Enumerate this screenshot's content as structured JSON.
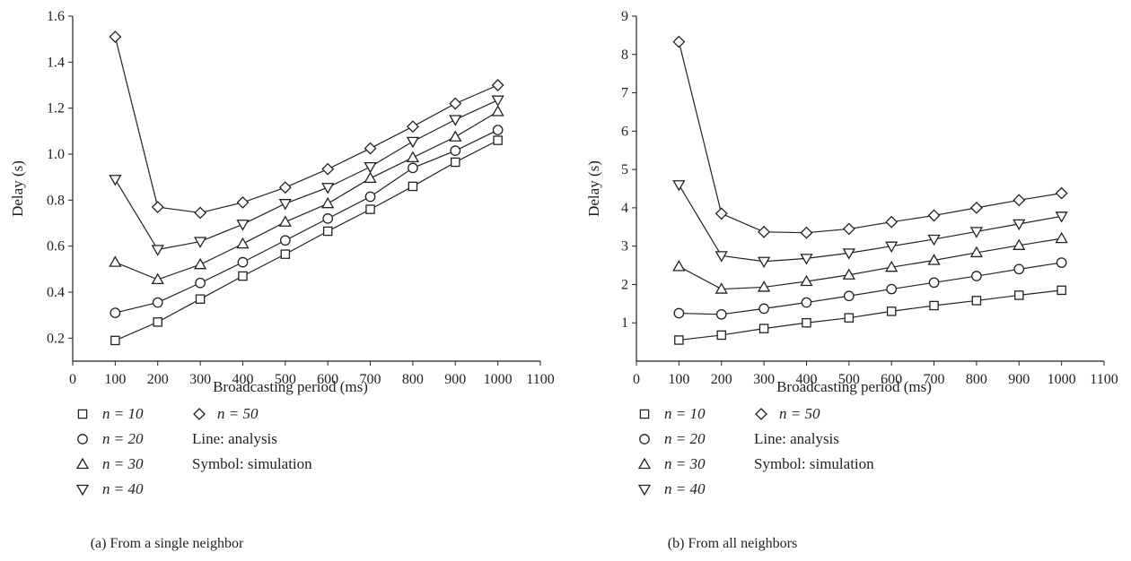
{
  "chart_data": [
    {
      "type": "line",
      "caption": "(a)  From a single neighbor",
      "xlabel": "Broadcasting period (ms)",
      "ylabel": "Delay (s)",
      "xlim": [
        0,
        1100
      ],
      "ylim": [
        0.1,
        1.6
      ],
      "xticks": [
        "0",
        "100",
        "200",
        "300",
        "400",
        "500",
        "600",
        "700",
        "800",
        "900",
        "1000",
        "1100"
      ],
      "yticks": [
        "0.2",
        "0.4",
        "0.6",
        "0.8",
        "1.0",
        "1.2",
        "1.4",
        "1.6"
      ],
      "x": [
        100,
        200,
        300,
        400,
        500,
        600,
        700,
        800,
        900,
        1000
      ],
      "series": [
        {
          "name": "n = 10",
          "marker": "square",
          "values": [
            0.19,
            0.27,
            0.37,
            0.47,
            0.565,
            0.665,
            0.76,
            0.86,
            0.965,
            1.06
          ]
        },
        {
          "name": "n = 20",
          "marker": "circle",
          "values": [
            0.31,
            0.355,
            0.44,
            0.53,
            0.625,
            0.72,
            0.815,
            0.94,
            1.015,
            1.105
          ]
        },
        {
          "name": "n = 30",
          "marker": "triangle-up",
          "values": [
            0.53,
            0.455,
            0.52,
            0.61,
            0.705,
            0.785,
            0.895,
            0.985,
            1.075,
            1.185
          ]
        },
        {
          "name": "n = 40",
          "marker": "triangle-down",
          "values": [
            0.89,
            0.585,
            0.62,
            0.695,
            0.785,
            0.855,
            0.945,
            1.055,
            1.15,
            1.235
          ]
        },
        {
          "name": "n = 50",
          "marker": "diamond",
          "values": [
            1.51,
            0.77,
            0.745,
            0.79,
            0.855,
            0.935,
            1.025,
            1.12,
            1.22,
            1.3
          ]
        }
      ],
      "legend_notes": [
        "Line: analysis",
        "Symbol: simulation"
      ]
    },
    {
      "type": "line",
      "caption": "(b)  From all neighbors",
      "xlabel": "Broadcasting period (ms)",
      "ylabel": "Delay (s)",
      "xlim": [
        0,
        1100
      ],
      "ylim": [
        0,
        9
      ],
      "xticks": [
        "0",
        "100",
        "200",
        "300",
        "400",
        "500",
        "600",
        "700",
        "800",
        "900",
        "1000",
        "1100"
      ],
      "yticks": [
        "1",
        "2",
        "3",
        "4",
        "5",
        "6",
        "7",
        "8",
        "9"
      ],
      "x": [
        100,
        200,
        300,
        400,
        500,
        600,
        700,
        800,
        900,
        1000
      ],
      "series": [
        {
          "name": "n = 10",
          "marker": "square",
          "values": [
            0.55,
            0.68,
            0.85,
            1.0,
            1.13,
            1.3,
            1.45,
            1.58,
            1.72,
            1.85
          ]
        },
        {
          "name": "n = 20",
          "marker": "circle",
          "values": [
            1.25,
            1.22,
            1.37,
            1.53,
            1.7,
            1.88,
            2.05,
            2.22,
            2.4,
            2.57
          ]
        },
        {
          "name": "n = 30",
          "marker": "triangle-up",
          "values": [
            2.47,
            1.88,
            1.93,
            2.08,
            2.25,
            2.45,
            2.63,
            2.83,
            3.02,
            3.2
          ]
        },
        {
          "name": "n = 40",
          "marker": "triangle-down",
          "values": [
            4.6,
            2.75,
            2.6,
            2.68,
            2.82,
            3.0,
            3.18,
            3.38,
            3.58,
            3.78
          ]
        },
        {
          "name": "n = 50",
          "marker": "diamond",
          "values": [
            8.33,
            3.85,
            3.37,
            3.35,
            3.45,
            3.63,
            3.8,
            4.0,
            4.2,
            4.38
          ]
        }
      ],
      "legend_notes": [
        "Line: analysis",
        "Symbol: simulation"
      ]
    }
  ]
}
